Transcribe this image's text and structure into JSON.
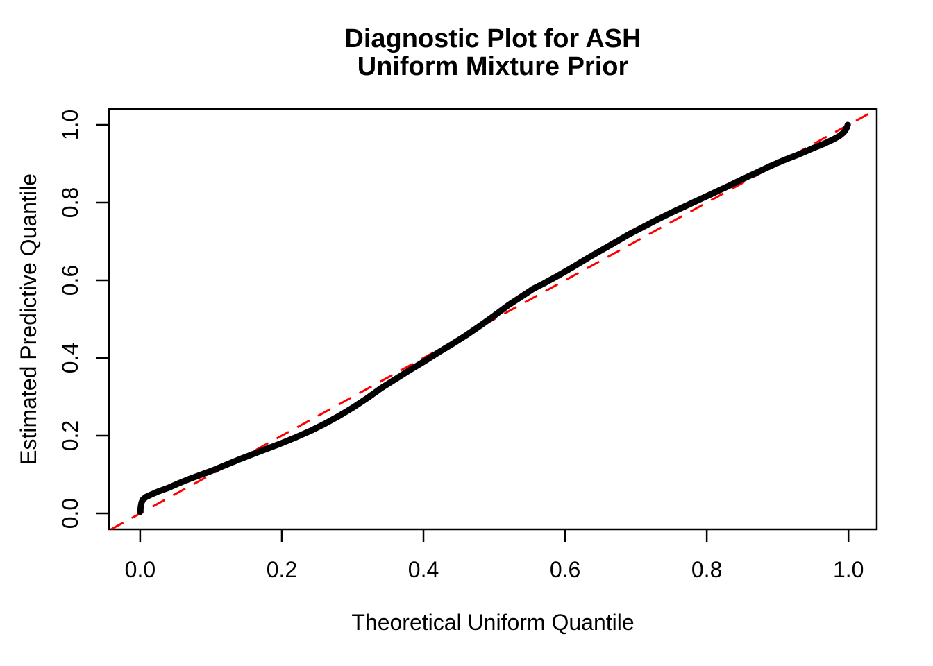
{
  "chart_data": {
    "type": "line",
    "title_line1": "Diagnostic Plot for ASH",
    "title_line2": "Uniform Mixture Prior",
    "xlabel": "Theoretical Uniform Quantile",
    "ylabel": "Estimated Predictive Quantile",
    "xlim": [
      -0.044,
      1.04
    ],
    "ylim": [
      -0.041,
      1.041
    ],
    "x_ticks": [
      0.0,
      0.2,
      0.4,
      0.6,
      0.8,
      1.0
    ],
    "y_ticks": [
      0.0,
      0.2,
      0.4,
      0.6,
      0.8,
      1.0
    ],
    "x_tick_labels": [
      "0.0",
      "0.2",
      "0.4",
      "0.6",
      "0.8",
      "1.0"
    ],
    "y_tick_labels": [
      "0.0",
      "0.2",
      "0.4",
      "0.6",
      "0.8",
      "1.0"
    ],
    "grid": false,
    "legend": "none",
    "colors": {
      "curve": "#000000",
      "reference_line": "#FF0000",
      "axis": "#000000",
      "background": "#FFFFFF"
    },
    "series": [
      {
        "name": "estimated-predictive-quantile-curve",
        "color": "#000000",
        "style": "solid",
        "stroke_width": 9,
        "points": [
          [
            0.0,
            0.004
          ],
          [
            0.001,
            0.018
          ],
          [
            0.002,
            0.028
          ],
          [
            0.004,
            0.036
          ],
          [
            0.008,
            0.042
          ],
          [
            0.015,
            0.048
          ],
          [
            0.025,
            0.056
          ],
          [
            0.04,
            0.066
          ],
          [
            0.055,
            0.078
          ],
          [
            0.07,
            0.089
          ],
          [
            0.085,
            0.099
          ],
          [
            0.1,
            0.109
          ],
          [
            0.12,
            0.124
          ],
          [
            0.14,
            0.139
          ],
          [
            0.16,
            0.153
          ],
          [
            0.18,
            0.167
          ],
          [
            0.2,
            0.181
          ],
          [
            0.22,
            0.196
          ],
          [
            0.24,
            0.212
          ],
          [
            0.26,
            0.23
          ],
          [
            0.28,
            0.25
          ],
          [
            0.3,
            0.272
          ],
          [
            0.32,
            0.296
          ],
          [
            0.34,
            0.322
          ],
          [
            0.36,
            0.345
          ],
          [
            0.38,
            0.368
          ],
          [
            0.4,
            0.39
          ],
          [
            0.42,
            0.413
          ],
          [
            0.44,
            0.435
          ],
          [
            0.46,
            0.458
          ],
          [
            0.48,
            0.483
          ],
          [
            0.5,
            0.509
          ],
          [
            0.52,
            0.536
          ],
          [
            0.54,
            0.56
          ],
          [
            0.555,
            0.578
          ],
          [
            0.57,
            0.592
          ],
          [
            0.59,
            0.612
          ],
          [
            0.61,
            0.633
          ],
          [
            0.63,
            0.655
          ],
          [
            0.65,
            0.676
          ],
          [
            0.67,
            0.697
          ],
          [
            0.69,
            0.718
          ],
          [
            0.71,
            0.737
          ],
          [
            0.73,
            0.756
          ],
          [
            0.75,
            0.774
          ],
          [
            0.77,
            0.791
          ],
          [
            0.79,
            0.808
          ],
          [
            0.81,
            0.825
          ],
          [
            0.83,
            0.842
          ],
          [
            0.85,
            0.86
          ],
          [
            0.87,
            0.877
          ],
          [
            0.89,
            0.894
          ],
          [
            0.91,
            0.91
          ],
          [
            0.93,
            0.924
          ],
          [
            0.95,
            0.94
          ],
          [
            0.965,
            0.951
          ],
          [
            0.978,
            0.962
          ],
          [
            0.987,
            0.971
          ],
          [
            0.993,
            0.98
          ],
          [
            0.996,
            0.987
          ],
          [
            0.998,
            0.994
          ],
          [
            0.999,
            1.0
          ]
        ]
      },
      {
        "name": "identity-reference-line",
        "color": "#FF0000",
        "style": "dashed",
        "stroke_width": 3,
        "points": [
          [
            -0.041,
            -0.041
          ],
          [
            1.04,
            1.04
          ]
        ]
      }
    ]
  }
}
